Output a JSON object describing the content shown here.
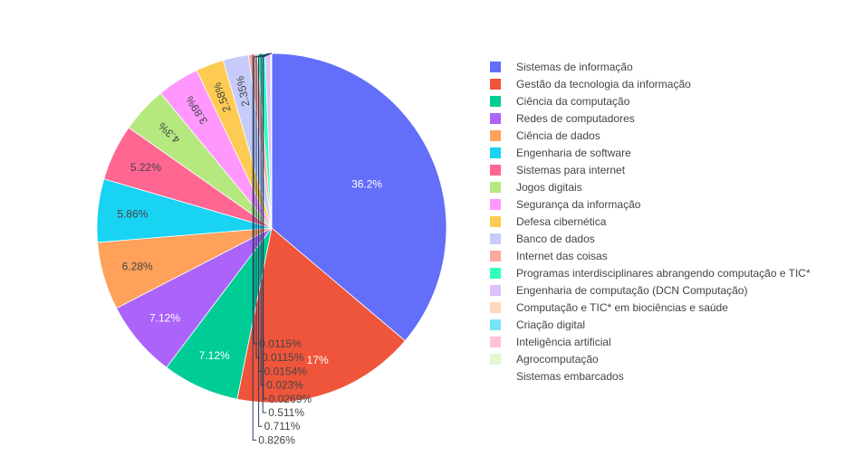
{
  "chart_data": {
    "type": "pie",
    "labels": [
      "Sistemas de informação",
      "Gestão da tecnologia da informação",
      "Ciência da computação",
      "Redes de computadores",
      "Ciência de dados",
      "Engenharia de software",
      "Sistemas para internet",
      "Jogos digitais",
      "Segurança da informação",
      "Defesa cibernética",
      "Banco de dados",
      "Internet das coisas",
      "Programas interdisciplinares abrangendo computação e TIC*",
      "Engenharia de computação (DCN Computação)",
      "Computação e TIC* em biociências e saúde",
      "Criação digital",
      "Inteligência artificial",
      "Agrocomputação",
      "Sistemas embarcados"
    ],
    "values": [
      36.2,
      17,
      7.12,
      7.12,
      6.28,
      5.86,
      5.22,
      4.3,
      3.89,
      2.58,
      2.35,
      0.826,
      0.711,
      0.511,
      0.0269,
      0.023,
      0.0154,
      0.0115,
      0.0115
    ],
    "value_labels": [
      "36.2%",
      "17%",
      "7.12%",
      "7.12%",
      "6.28%",
      "5.86%",
      "5.22%",
      "4.3%",
      "3.89%",
      "2.58%",
      "2.35%",
      "0.826%",
      "0.711%",
      "0.511%",
      "0.0269%",
      "0.023%",
      "0.0154%",
      "0.0115%",
      "0.0115%"
    ],
    "colors": [
      "#636efa",
      "#EF553B",
      "#00cc96",
      "#ab63fa",
      "#FFA15A",
      "#19d3f3",
      "#FF6692",
      "#B6E880",
      "#FF97FF",
      "#FECB52",
      "#c6cbfb",
      "#f9aa9d",
      "#33ffc0",
      "#ddc1fd",
      "#ffd9bd",
      "#75e5f8",
      "#ffc2d3",
      "#e2f6d1",
      "#ffffff"
    ],
    "legend_position": "right",
    "direction": "clockwise",
    "start_angle": "top"
  }
}
